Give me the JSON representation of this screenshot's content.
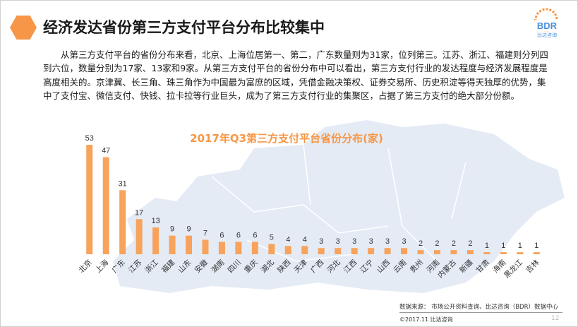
{
  "slide": {
    "title": "经济发达省份第三方支付平台分布比较集中",
    "paragraph": "从第三方支付平台的省份分布来看，北京、上海位居第一、第二，广东数量则为31家，位列第三。江苏、浙江、福建则分列四到六位，数量分别为17家、13家和9家。从第三方支付平台的省份分布中可以看出，第三方支付行业的发达程度与经济发展程度是高度相关的。京津冀、长三角、珠三角作为中国最为富庶的区域，凭借金融决策权、证券交易所、历史积淀等得天独厚的优势，集中了支付宝、微信支付、快钱、拉卡拉等行业巨头，成为了第三方支付行业的集聚区，占据了第三方支付的绝大部分份额。",
    "source": "数据来源： 市场公开资料查询、比达咨询（BDR）数据中心",
    "copyright": "©2017.11  比达咨询",
    "page_number": "12",
    "logo": {
      "text": "BDR",
      "subtext": "比达咨询"
    }
  },
  "colors": {
    "accent": "#f79646",
    "bar": "#f7a35c",
    "title_chart": "#f79646",
    "map": "#dfe8f3"
  },
  "chart_data": {
    "type": "bar",
    "title": "2017年Q3第三方支付平台省份分布(家)",
    "categories": [
      "北京",
      "上海",
      "广东",
      "江苏",
      "浙江",
      "福建",
      "山东",
      "安徽",
      "湖南",
      "四川",
      "重庆",
      "湖北",
      "陕西",
      "天津",
      "广西",
      "河北",
      "江西",
      "辽宁",
      "山西",
      "云南",
      "贵州",
      "河南",
      "内蒙古",
      "新疆",
      "甘肃",
      "海南",
      "黑龙江",
      "吉林"
    ],
    "values": [
      53,
      47,
      31,
      17,
      13,
      9,
      9,
      7,
      6,
      6,
      6,
      5,
      4,
      4,
      3,
      3,
      3,
      3,
      3,
      3,
      2,
      2,
      2,
      2,
      1,
      1,
      1,
      1
    ],
    "ylim": [
      0,
      53
    ],
    "grid": false,
    "legend": "none"
  }
}
